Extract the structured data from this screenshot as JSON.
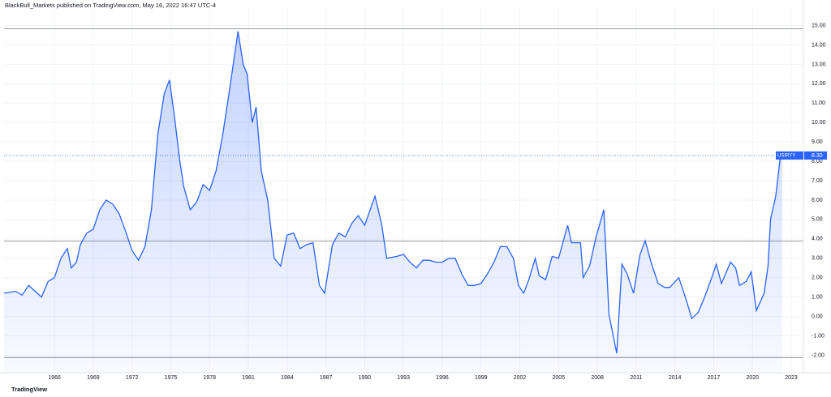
{
  "header": "BlackBull_Markets published on TradingView.com, May 16, 2022 16:47 UTC-4",
  "logo": "TradingView",
  "chart_data": {
    "type": "area",
    "symbol": "USIRYY",
    "last_value_label": "8.30",
    "grid": true,
    "xlim": [
      1962.1,
      2023.94
    ],
    "ylim": [
      -2.9,
      15.9
    ],
    "xticks": [
      1966,
      1969,
      1972,
      1975,
      1978,
      1981,
      1984,
      1987,
      1990,
      1993,
      1996,
      1999,
      2002,
      2005,
      2008,
      2011,
      2014,
      2017,
      2020,
      2023
    ],
    "yticks": [
      {
        "value": -2,
        "label": "-2.00"
      },
      {
        "value": -1,
        "label": "-1.00"
      },
      {
        "value": 0,
        "label": "0.00"
      },
      {
        "value": 1,
        "label": "1.00"
      },
      {
        "value": 2,
        "label": "2.00"
      },
      {
        "value": 3,
        "label": "3.00"
      },
      {
        "value": 4,
        "label": "4.00"
      },
      {
        "value": 5,
        "label": "5.00"
      },
      {
        "value": 6,
        "label": "6.00"
      },
      {
        "value": 7,
        "label": "7.00"
      },
      {
        "value": 8,
        "label": "8.00"
      },
      {
        "value": 9,
        "label": "9.00"
      },
      {
        "value": 10,
        "label": "10.00"
      },
      {
        "value": 11,
        "label": "11.00"
      },
      {
        "value": 12,
        "label": "12.00"
      },
      {
        "value": 13,
        "label": "13.00"
      },
      {
        "value": 14,
        "label": "14.00"
      },
      {
        "value": 15,
        "label": "15.00"
      }
    ],
    "horizontal_lines": [
      14.83,
      3.89,
      -2.12
    ],
    "series": [
      {
        "name": "USIRYY",
        "color": "#2962ff",
        "x": [
          1962.1,
          1963,
          1963.5,
          1964,
          1964.5,
          1965,
          1965.5,
          1966,
          1966.5,
          1967,
          1967.3,
          1967.7,
          1968,
          1968.5,
          1969,
          1969.5,
          1970,
          1970.5,
          1971,
          1971.5,
          1972,
          1972.5,
          1973,
          1973.5,
          1974,
          1974.5,
          1974.9,
          1975.3,
          1975.7,
          1976,
          1976.5,
          1977,
          1977.5,
          1978,
          1978.5,
          1979,
          1979.5,
          1980.2,
          1980.6,
          1980.9,
          1981.3,
          1981.6,
          1982,
          1982.5,
          1983,
          1983.5,
          1984,
          1984.5,
          1985,
          1985.5,
          1986,
          1986.5,
          1986.9,
          1987.5,
          1988,
          1988.5,
          1989,
          1989.5,
          1990,
          1990.8,
          1991.3,
          1991.7,
          1992.5,
          1993,
          1993.5,
          1994,
          1994.5,
          1995,
          1995.5,
          1996,
          1996.5,
          1997,
          1997.5,
          1998,
          1998.5,
          1999,
          1999.5,
          2000,
          2000.5,
          2001,
          2001.5,
          2001.9,
          2002.3,
          2002.7,
          2003.2,
          2003.5,
          2004,
          2004.5,
          2005,
          2005.7,
          2006,
          2006.7,
          2006.9,
          2007.4,
          2007.9,
          2008.5,
          2008.9,
          2009.5,
          2009.9,
          2010.3,
          2010.8,
          2011.3,
          2011.7,
          2012.2,
          2012.7,
          2013.2,
          2013.6,
          2014.3,
          2014.9,
          2015.3,
          2015.8,
          2016.3,
          2016.9,
          2017.2,
          2017.6,
          2018.3,
          2018.7,
          2019,
          2019.5,
          2019.9,
          2020.3,
          2020.5,
          2020.9,
          2021.2,
          2021.4,
          2021.8,
          2022.2,
          2022.3
        ],
        "values": [
          1.2,
          1.3,
          1.1,
          1.6,
          1.3,
          1.0,
          1.8,
          2.0,
          3.0,
          3.5,
          2.5,
          2.8,
          3.7,
          4.3,
          4.5,
          5.5,
          6.0,
          5.8,
          5.3,
          4.4,
          3.4,
          2.9,
          3.6,
          5.5,
          9.4,
          11.5,
          12.2,
          10.2,
          8.0,
          6.7,
          5.5,
          5.9,
          6.8,
          6.5,
          7.5,
          9.3,
          11.5,
          14.7,
          13.0,
          12.5,
          10.0,
          10.8,
          7.5,
          6.0,
          3.0,
          2.6,
          4.2,
          4.3,
          3.5,
          3.7,
          3.8,
          1.6,
          1.2,
          3.7,
          4.3,
          4.1,
          4.8,
          5.2,
          4.7,
          6.2,
          4.8,
          3.0,
          3.1,
          3.2,
          2.8,
          2.5,
          2.9,
          2.9,
          2.8,
          2.8,
          3.0,
          3.0,
          2.2,
          1.6,
          1.6,
          1.7,
          2.2,
          2.8,
          3.6,
          3.6,
          3.0,
          1.6,
          1.2,
          1.9,
          3.0,
          2.1,
          1.9,
          3.1,
          3.0,
          4.7,
          3.8,
          3.8,
          2.0,
          2.6,
          4.1,
          5.5,
          0.1,
          -1.9,
          2.7,
          2.2,
          1.2,
          3.2,
          3.9,
          2.7,
          1.7,
          1.5,
          1.5,
          2.0,
          0.8,
          -0.1,
          0.2,
          1.0,
          2.1,
          2.7,
          1.7,
          2.8,
          2.5,
          1.6,
          1.8,
          2.3,
          0.3,
          0.6,
          1.2,
          2.6,
          5.0,
          6.2,
          8.5,
          8.3
        ]
      }
    ]
  }
}
